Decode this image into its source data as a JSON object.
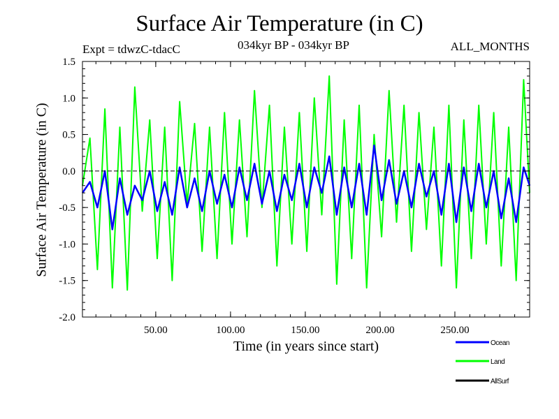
{
  "chart_data": {
    "type": "line",
    "title": "Surface Air Temperature (in C)",
    "subtitle_left": "Expt = tdwzC-tdacC",
    "subtitle_center": "034kyr BP - 034kyr BP",
    "subtitle_right": "ALL_MONTHS",
    "xlabel": "Time (in years since start)",
    "ylabel": "Surface Air Temperature (in C)",
    "xlim": [
      1,
      300
    ],
    "ylim": [
      -2.0,
      1.5
    ],
    "x_ticks": [
      50,
      100,
      150,
      200,
      250
    ],
    "x_tick_labels": [
      "50.00",
      "100.00",
      "150.00",
      "200.00",
      "250.00"
    ],
    "y_ticks": [
      -2.0,
      -1.5,
      -1.0,
      -0.5,
      0.0,
      0.5,
      1.0,
      1.5
    ],
    "y_tick_labels": [
      "-2.0",
      "-1.5",
      "-1.0",
      "-0.5",
      "0.0",
      "0.5",
      "1.0",
      "1.5"
    ],
    "zero_line": true,
    "grid": false,
    "legend_position": "bottom-right, below plot",
    "series": [
      {
        "name": "Land",
        "color": "#00ff00",
        "x": [
          1,
          6,
          11,
          16,
          21,
          26,
          31,
          36,
          41,
          46,
          51,
          56,
          61,
          66,
          71,
          76,
          81,
          86,
          91,
          96,
          101,
          106,
          111,
          116,
          121,
          126,
          131,
          136,
          141,
          146,
          151,
          156,
          161,
          166,
          171,
          176,
          181,
          186,
          191,
          196,
          201,
          206,
          211,
          216,
          221,
          226,
          231,
          236,
          241,
          246,
          251,
          256,
          261,
          266,
          271,
          276,
          281,
          286,
          291,
          296,
          300
        ],
        "values": [
          -0.2,
          0.45,
          -1.35,
          0.85,
          -1.6,
          0.6,
          -1.63,
          1.15,
          -0.55,
          0.7,
          -1.2,
          0.6,
          -1.5,
          0.95,
          -0.45,
          0.65,
          -1.1,
          0.6,
          -1.2,
          0.8,
          -1.0,
          0.7,
          -0.9,
          1.1,
          -0.5,
          0.9,
          -1.3,
          0.6,
          -1.0,
          0.8,
          -1.1,
          1.0,
          -0.6,
          1.3,
          -1.55,
          0.7,
          -1.2,
          0.9,
          -1.6,
          0.5,
          -0.9,
          1.1,
          -0.7,
          0.9,
          -1.1,
          0.8,
          -0.8,
          0.6,
          -1.3,
          0.9,
          -1.6,
          0.7,
          -1.2,
          0.9,
          -1.0,
          0.8,
          -1.3,
          0.6,
          -1.5,
          1.25,
          -0.3
        ]
      },
      {
        "name": "Ocean",
        "color": "#0000ff",
        "x": [
          1,
          6,
          11,
          16,
          21,
          26,
          31,
          36,
          41,
          46,
          51,
          56,
          61,
          66,
          71,
          76,
          81,
          86,
          91,
          96,
          101,
          106,
          111,
          116,
          121,
          126,
          131,
          136,
          141,
          146,
          151,
          156,
          161,
          166,
          171,
          176,
          181,
          186,
          191,
          196,
          201,
          206,
          211,
          216,
          221,
          226,
          231,
          236,
          241,
          246,
          251,
          256,
          261,
          266,
          271,
          276,
          281,
          286,
          291,
          296,
          300
        ],
        "values": [
          -0.3,
          -0.15,
          -0.5,
          0.0,
          -0.8,
          -0.1,
          -0.6,
          -0.2,
          -0.4,
          0.0,
          -0.55,
          -0.15,
          -0.6,
          0.05,
          -0.5,
          -0.1,
          -0.55,
          0.0,
          -0.45,
          -0.05,
          -0.5,
          0.05,
          -0.4,
          0.1,
          -0.45,
          0.0,
          -0.55,
          -0.05,
          -0.4,
          0.1,
          -0.5,
          0.05,
          -0.3,
          0.2,
          -0.6,
          0.05,
          -0.5,
          0.1,
          -0.6,
          0.35,
          -0.4,
          0.15,
          -0.45,
          0.0,
          -0.5,
          0.1,
          -0.35,
          0.0,
          -0.6,
          0.1,
          -0.7,
          0.05,
          -0.55,
          0.1,
          -0.5,
          0.0,
          -0.65,
          -0.1,
          -0.7,
          0.05,
          -0.2
        ]
      },
      {
        "name": "AllSurf",
        "color": "#000000",
        "x": [],
        "values": []
      }
    ]
  }
}
